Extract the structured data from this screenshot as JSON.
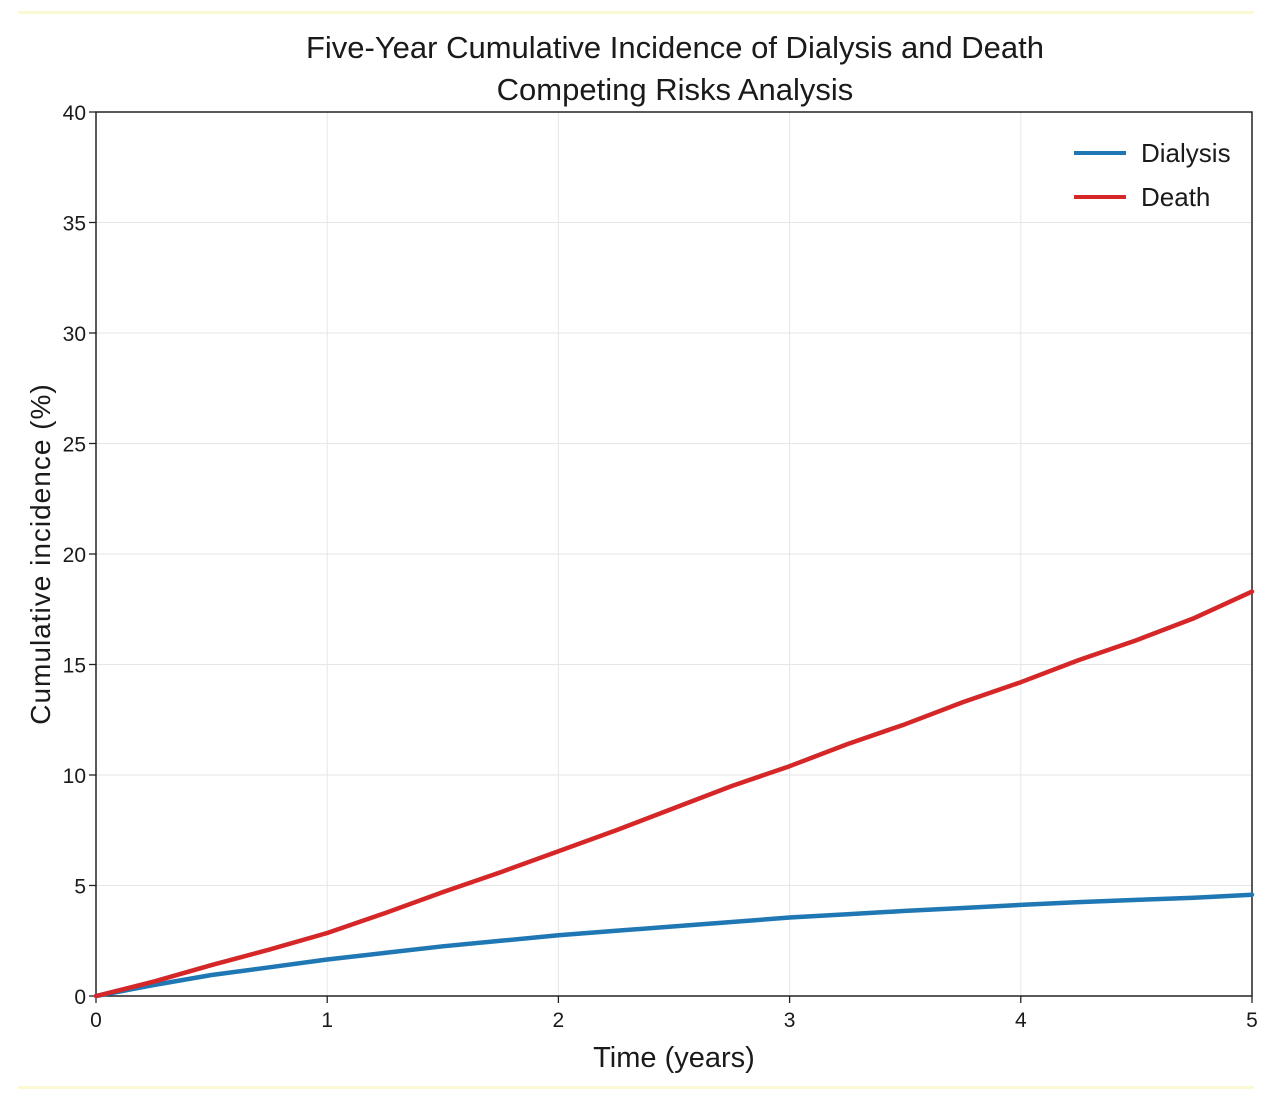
{
  "chart_data": {
    "type": "line",
    "title": "Five-Year Cumulative Incidence of Dialysis and Death",
    "subtitle": "Competing Risks Analysis",
    "xlabel": "Time (years)",
    "ylabel": "Cumulative incidence (%)",
    "xlim": [
      0,
      5
    ],
    "ylim": [
      0,
      40
    ],
    "xticks": [
      0,
      1,
      2,
      3,
      4,
      5
    ],
    "xtick_labels": [
      "0",
      "1",
      "2",
      "3",
      "4",
      "5"
    ],
    "yticks": [
      0,
      5,
      10,
      15,
      20,
      25,
      30,
      35,
      40
    ],
    "ytick_labels": [
      "0",
      "5",
      "10",
      "15",
      "20",
      "25",
      "30",
      "35",
      "40"
    ],
    "grid": true,
    "legend_position": "top-right",
    "series": [
      {
        "name": "Dialysis",
        "color": "#1f77b4",
        "x": [
          0,
          0.25,
          0.5,
          0.75,
          1.0,
          1.25,
          1.5,
          1.75,
          2.0,
          2.25,
          2.5,
          2.75,
          3.0,
          3.25,
          3.5,
          3.75,
          4.0,
          4.25,
          4.5,
          4.75,
          5.0
        ],
        "y": [
          0,
          0.5,
          0.95,
          1.3,
          1.65,
          1.95,
          2.25,
          2.5,
          2.75,
          2.95,
          3.15,
          3.35,
          3.55,
          3.7,
          3.85,
          3.98,
          4.12,
          4.25,
          4.35,
          4.45,
          4.58
        ]
      },
      {
        "name": "Death",
        "color": "#d62728",
        "x": [
          0,
          0.25,
          0.5,
          0.75,
          1.0,
          1.25,
          1.5,
          1.75,
          2.0,
          2.25,
          2.5,
          2.75,
          3.0,
          3.25,
          3.5,
          3.75,
          4.0,
          4.25,
          4.5,
          4.75,
          5.0
        ],
        "y": [
          0,
          0.65,
          1.4,
          2.1,
          2.85,
          3.75,
          4.7,
          5.6,
          6.55,
          7.5,
          8.5,
          9.5,
          10.4,
          11.4,
          12.3,
          13.3,
          14.2,
          15.2,
          16.1,
          17.1,
          18.3
        ]
      }
    ]
  }
}
